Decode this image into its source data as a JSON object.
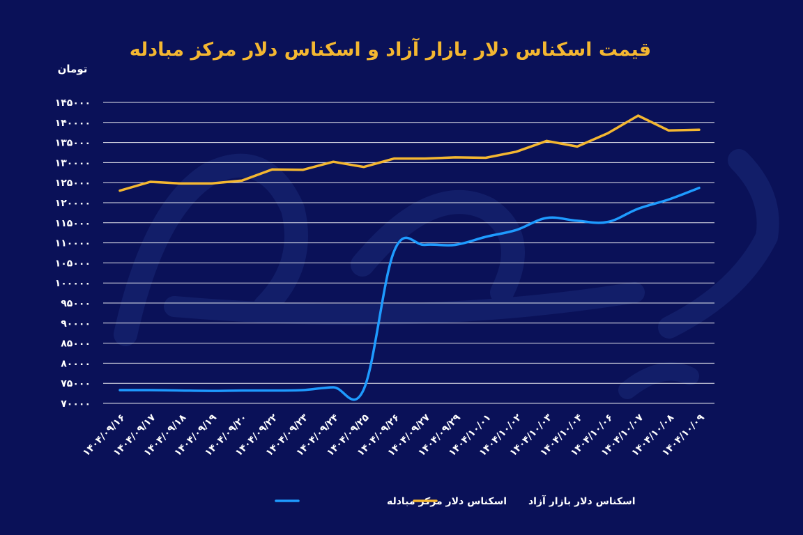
{
  "colors": {
    "background": "#0a1158",
    "title": "#f4b731",
    "text": "#ffffff",
    "grid": "#ffffff",
    "free_market": "#f4b731",
    "exchange_center": "#1e9bff",
    "watermark": "#1a2a78"
  },
  "chart_data": {
    "type": "line",
    "title": "قیمت اسکناس دلار بازار آزاد و اسکناس دلار مرکز مبادله",
    "ylabel": "تومان",
    "xlabel": "",
    "ylim": [
      70000,
      145000
    ],
    "grid": true,
    "legend_position": "bottom",
    "y_ticks": [
      70000,
      75000,
      80000,
      85000,
      90000,
      95000,
      100000,
      105000,
      110000,
      115000,
      120000,
      125000,
      130000,
      135000,
      140000,
      145000
    ],
    "y_tick_labels": [
      "۷۰۰۰۰",
      "۷۵۰۰۰",
      "۸۰۰۰۰",
      "۸۵۰۰۰",
      "۹۰۰۰۰",
      "۹۵۰۰۰",
      "۱۰۰۰۰۰",
      "۱۰۵۰۰۰",
      "۱۱۰۰۰۰",
      "۱۱۵۰۰۰",
      "۱۲۰۰۰۰",
      "۱۲۵۰۰۰",
      "۱۳۰۰۰۰",
      "۱۳۵۰۰۰",
      "۱۴۰۰۰۰",
      "۱۴۵۰۰۰"
    ],
    "categories": [
      "۱۴۰۴/۰۹/۱۶",
      "۱۴۰۴/۰۹/۱۷",
      "۱۴۰۴/۰۹/۱۸",
      "۱۴۰۴/۰۹/۱۹",
      "۱۴۰۴/۰۹/۲۰",
      "۱۴۰۴/۰۹/۲۲",
      "۱۴۰۴/۰۹/۲۳",
      "۱۴۰۴/۰۹/۲۴",
      "۱۴۰۴/۰۹/۲۵",
      "۱۴۰۴/۰۹/۲۶",
      "۱۴۰۴/۰۹/۲۷",
      "۱۴۰۴/۰۹/۲۹",
      "۱۴۰۴/۱۰/۰۱",
      "۱۴۰۴/۱۰/۰۲",
      "۱۴۰۴/۱۰/۰۳",
      "۱۴۰۴/۱۰/۰۴",
      "۱۴۰۴/۱۰/۰۶",
      "۱۴۰۴/۱۰/۰۷",
      "۱۴۰۴/۱۰/۰۸",
      "۱۴۰۴/۱۰/۰۹"
    ],
    "series": [
      {
        "name": "اسکناس دلار مرکز مبادله",
        "color": "#1e9bff",
        "values": [
          73300,
          73300,
          73200,
          73100,
          73200,
          73200,
          73300,
          74000,
          73500,
          108000,
          109500,
          109500,
          111500,
          113200,
          116200,
          115500,
          115200,
          118500,
          120800,
          123700
        ]
      },
      {
        "name": "اسکناس دلار بازار آزاد",
        "color": "#f4b731",
        "values": [
          123000,
          125200,
          124800,
          124800,
          125500,
          128300,
          128200,
          130200,
          128900,
          131000,
          131000,
          131300,
          131200,
          132700,
          135400,
          134000,
          137300,
          141700,
          138000,
          138200
        ]
      }
    ]
  }
}
